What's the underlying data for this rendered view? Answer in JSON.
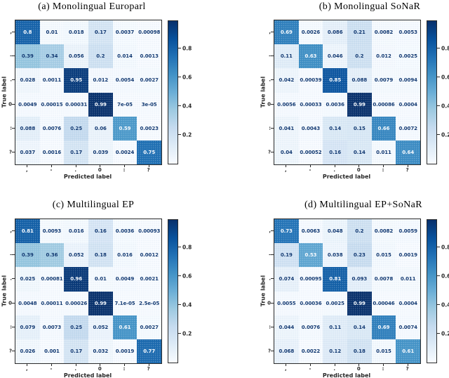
{
  "figure": {
    "xlabel": "Predicted label",
    "ylabel": "True label",
    "class_labels": [
      ",",
      "-",
      ".",
      "0",
      ":",
      "?"
    ]
  },
  "colors": {
    "colormap_name": "Blues",
    "colormap_stops": [
      "#f7fbff",
      "#deebf7",
      "#c6dbef",
      "#9ecae1",
      "#6baed6",
      "#4292c6",
      "#2171b5",
      "#08519c",
      "#08306b"
    ],
    "cell_text_dark": "#08306b",
    "cell_text_light": "#f7fbff",
    "axis_color": "#262626",
    "title_color": "#000000"
  },
  "chart_data": [
    {
      "type": "heatmap",
      "title": "(a) Monolingual Europarl",
      "xlabel": "Predicted label",
      "ylabel": "True label",
      "x_tick_labels": [
        ",",
        "-",
        ".",
        "0",
        ":",
        "?"
      ],
      "y_tick_labels": [
        ",",
        "-",
        ".",
        "0",
        ":",
        "?"
      ],
      "cells": [
        [
          "0.8",
          "0.01",
          "0.018",
          "0.17",
          "0.0037",
          "0.00098"
        ],
        [
          "0.39",
          "0.34",
          "0.056",
          "0.2",
          "0.014",
          "0.0013"
        ],
        [
          "0.028",
          "0.0011",
          "0.95",
          "0.012",
          "0.0054",
          "0.0027"
        ],
        [
          "0.0049",
          "0.00015",
          "0.00031",
          "0.99",
          "7e-05",
          "3e-05"
        ],
        [
          "0.088",
          "0.0076",
          "0.25",
          "0.06",
          "0.59",
          "0.0023"
        ],
        [
          "0.037",
          "0.0016",
          "0.17",
          "0.039",
          "0.0024",
          "0.75"
        ]
      ],
      "colorbar": {
        "tick_labels": [
          "0.8",
          "0.6",
          "0.4",
          "0.2"
        ],
        "tick_values": [
          0.8,
          0.6,
          0.4,
          0.2
        ],
        "vmin": 0,
        "vmax": 0.99
      }
    },
    {
      "type": "heatmap",
      "title": "(b) Monolingual SoNaR",
      "xlabel": "Predicted label",
      "ylabel": "True label",
      "x_tick_labels": [
        ",",
        "-",
        ".",
        "0",
        ":",
        "?"
      ],
      "y_tick_labels": [
        ",",
        "-",
        ".",
        "0",
        ":",
        "?"
      ],
      "cells": [
        [
          "0.69",
          "0.0026",
          "0.086",
          "0.21",
          "0.0082",
          "0.0053"
        ],
        [
          "0.11",
          "0.63",
          "0.046",
          "0.2",
          "0.012",
          "0.0025"
        ],
        [
          "0.042",
          "0.00039",
          "0.85",
          "0.088",
          "0.0079",
          "0.0094"
        ],
        [
          "0.0056",
          "0.00033",
          "0.0036",
          "0.99",
          "0.00086",
          "0.0004"
        ],
        [
          "0.041",
          "0.0043",
          "0.14",
          "0.15",
          "0.66",
          "0.0072"
        ],
        [
          "0.04",
          "0.00052",
          "0.16",
          "0.14",
          "0.011",
          "0.64"
        ]
      ],
      "colorbar": {
        "tick_labels": [
          "0.8",
          "0.6",
          "0.4",
          "0.2"
        ],
        "tick_values": [
          0.8,
          0.6,
          0.4,
          0.2
        ],
        "vmin": 0,
        "vmax": 0.99
      }
    },
    {
      "type": "heatmap",
      "title": "(c) Multilingual EP",
      "xlabel": "Predicted label",
      "ylabel": "True label",
      "x_tick_labels": [
        ",",
        "-",
        ".",
        "0",
        ":",
        "?"
      ],
      "y_tick_labels": [
        ",",
        "-",
        ".",
        "0",
        ":",
        "?"
      ],
      "cells": [
        [
          "0.81",
          "0.0093",
          "0.016",
          "0.16",
          "0.0036",
          "0.00093"
        ],
        [
          "0.39",
          "0.36",
          "0.052",
          "0.18",
          "0.016",
          "0.0012"
        ],
        [
          "0.025",
          "0.00081",
          "0.96",
          "0.01",
          "0.0049",
          "0.0021"
        ],
        [
          "0.0048",
          "0.00011",
          "0.00026",
          "0.99",
          "7.1e-05",
          "2.5e-05"
        ],
        [
          "0.079",
          "0.0073",
          "0.25",
          "0.052",
          "0.61",
          "0.0027"
        ],
        [
          "0.026",
          "0.001",
          "0.17",
          "0.032",
          "0.0019",
          "0.77"
        ]
      ],
      "colorbar": {
        "tick_labels": [
          "0.8",
          "0.6",
          "0.4",
          "0.2"
        ],
        "tick_values": [
          0.8,
          0.6,
          0.4,
          0.2
        ],
        "vmin": 0,
        "vmax": 0.99
      }
    },
    {
      "type": "heatmap",
      "title": "(d) Multilingual EP+SoNaR",
      "xlabel": "Predicted label",
      "ylabel": "True label",
      "x_tick_labels": [
        ",",
        "-",
        ".",
        "0",
        ":",
        "?"
      ],
      "y_tick_labels": [
        ",",
        "-",
        ".",
        "0",
        ":",
        "?"
      ],
      "cells": [
        [
          "0.73",
          "0.0063",
          "0.048",
          "0.2",
          "0.0082",
          "0.0059"
        ],
        [
          "0.19",
          "0.53",
          "0.038",
          "0.23",
          "0.015",
          "0.0019"
        ],
        [
          "0.074",
          "0.00095",
          "0.81",
          "0.093",
          "0.0078",
          "0.011"
        ],
        [
          "0.0055",
          "0.00036",
          "0.0025",
          "0.99",
          "0.00046",
          "0.0004"
        ],
        [
          "0.044",
          "0.0076",
          "0.11",
          "0.14",
          "0.69",
          "0.0074"
        ],
        [
          "0.068",
          "0.0022",
          "0.12",
          "0.18",
          "0.015",
          "0.61"
        ]
      ],
      "colorbar": {
        "tick_labels": [
          "0.8",
          "0.6",
          "0.4",
          "0.2"
        ],
        "tick_values": [
          0.8,
          0.6,
          0.4,
          0.2
        ],
        "vmin": 0,
        "vmax": 0.99
      }
    }
  ]
}
